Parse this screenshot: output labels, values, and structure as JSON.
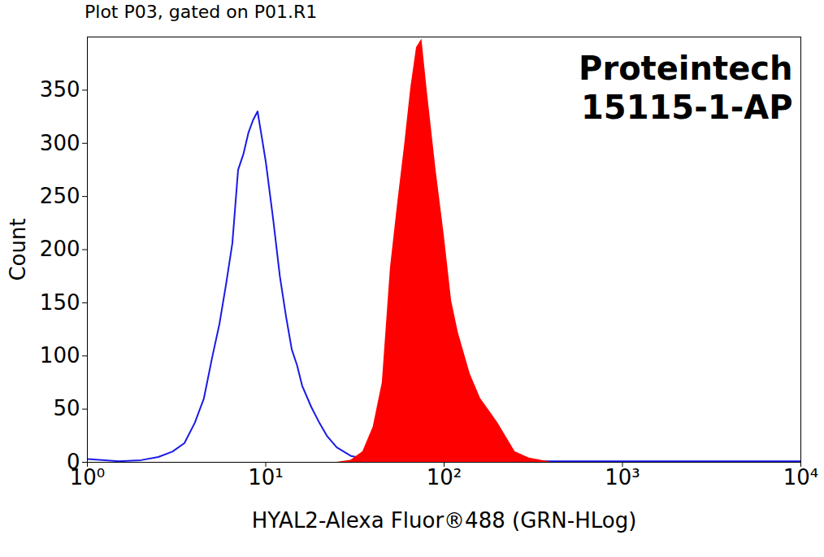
{
  "chart_data": {
    "type": "area",
    "title": "Plot P03, gated on P01.R1",
    "annotation": [
      "Proteintech",
      "15115-1-AP"
    ],
    "x_label": "HYAL2-Alexa Fluor®488 (GRN-HLog)",
    "y_label": "Count",
    "log": "x",
    "grid": false,
    "xlim": [
      1,
      10000
    ],
    "xticks": [
      {
        "value": 1,
        "label": "10⁰"
      },
      {
        "value": 10,
        "label": "10¹"
      },
      {
        "value": 100,
        "label": "10²"
      },
      {
        "value": 1000,
        "label": "10³"
      },
      {
        "value": 10000,
        "label": "10⁴"
      }
    ],
    "ylim": [
      0,
      400
    ],
    "yticks": [
      0,
      50,
      100,
      150,
      200,
      250,
      300,
      350
    ],
    "series": [
      {
        "type": "line",
        "color": "#1a1ae6",
        "x": [
          1,
          1.5,
          2,
          2.5,
          3,
          3.5,
          4,
          4.5,
          5,
          5.5,
          6,
          6.5,
          7,
          7.5,
          8,
          8.5,
          9,
          9.5,
          10,
          11,
          12,
          13,
          14,
          15,
          16,
          18,
          20,
          22,
          25,
          30,
          40,
          50,
          100,
          1000,
          10000
        ],
        "values": [
          3,
          1,
          2,
          5,
          10,
          18,
          37,
          60,
          98,
          130,
          168,
          206,
          275,
          290,
          310,
          322,
          330,
          306,
          283,
          229,
          175,
          137,
          106,
          91,
          72,
          52,
          37,
          25,
          14,
          6,
          2,
          1,
          1,
          1,
          1
        ]
      },
      {
        "type": "area",
        "color": "#ff0000",
        "x": [
          25,
          30,
          35,
          40,
          45,
          50,
          55,
          60,
          65,
          70,
          75,
          80,
          90,
          100,
          110,
          120,
          140,
          160,
          180,
          200,
          250,
          300,
          350,
          400
        ],
        "values": [
          0,
          2,
          10,
          33,
          75,
          183,
          245,
          298,
          352,
          390,
          398,
          352,
          275,
          214,
          152,
          122,
          83,
          60,
          48,
          37,
          10,
          4,
          2,
          0
        ]
      }
    ]
  }
}
